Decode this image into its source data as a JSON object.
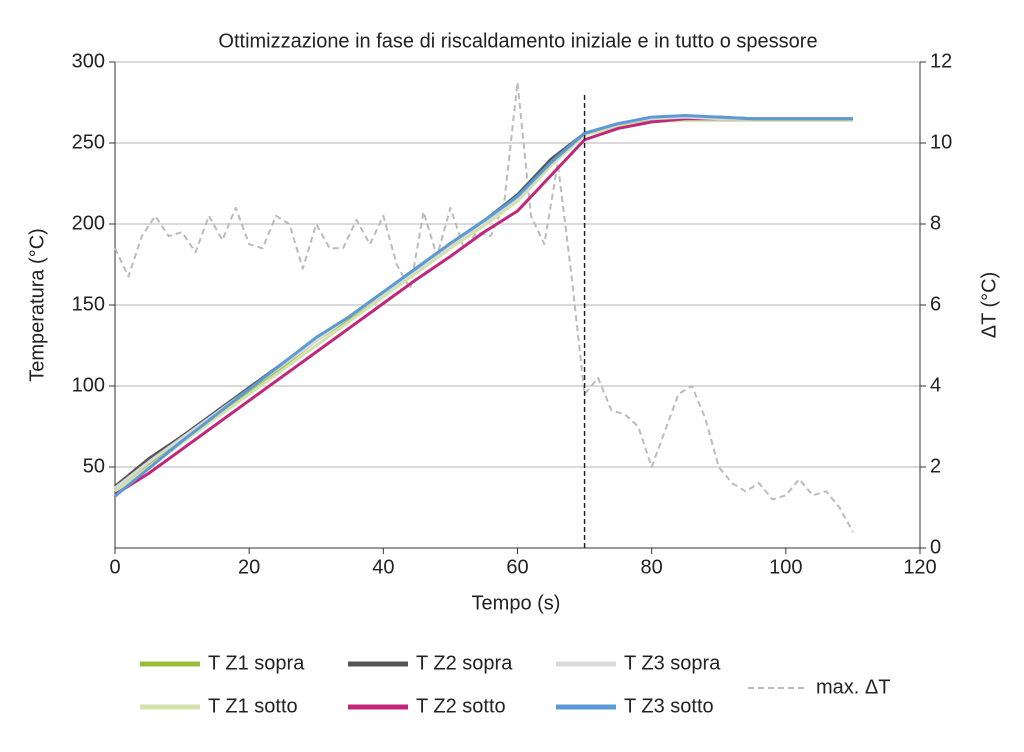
{
  "chart_data": {
    "type": "line",
    "title": "Ottimizzazione in fase di riscaldamento iniziale e in tutto o spessore",
    "xlabel": "Tempo (s)",
    "ylabel": "Temperatura (°C)",
    "y2label": "ΔT (°C)",
    "xlim": [
      0,
      120
    ],
    "xticks": [
      0,
      20,
      40,
      60,
      80,
      100,
      120
    ],
    "ylim": [
      0,
      300
    ],
    "yticks": [
      50,
      100,
      150,
      200,
      250,
      300
    ],
    "y2lim": [
      0,
      12
    ],
    "y2ticks": [
      0,
      2,
      4,
      6,
      8,
      10,
      12
    ],
    "grid": true,
    "vline": 70,
    "x": [
      0,
      5,
      10,
      15,
      20,
      25,
      30,
      35,
      40,
      45,
      50,
      55,
      60,
      65,
      70,
      75,
      80,
      85,
      90,
      95,
      100,
      105,
      110
    ],
    "series": [
      {
        "name": "T Z1 sopra",
        "color": "#9bbb3c",
        "values": [
          36,
          52,
          67,
          82,
          97,
          112,
          128,
          142,
          157,
          172,
          187,
          201,
          216,
          238,
          256,
          261,
          264,
          265,
          265,
          265,
          265,
          265,
          265
        ]
      },
      {
        "name": "T Z1 sotto",
        "color": "#d3e2ab",
        "values": [
          35,
          50,
          65,
          80,
          95,
          110,
          125,
          140,
          155,
          170,
          185,
          199,
          214,
          236,
          255,
          260,
          263,
          264,
          264,
          264,
          264,
          264,
          264
        ]
      },
      {
        "name": "T Z2 sopra",
        "color": "#555555",
        "values": [
          38,
          55,
          69,
          84,
          99,
          114,
          129,
          143,
          158,
          173,
          188,
          202,
          218,
          240,
          256,
          262,
          265,
          266,
          266,
          265,
          265,
          265,
          265
        ]
      },
      {
        "name": "T Z2 sotto",
        "color": "#c2267a",
        "values": [
          33,
          46,
          61,
          76,
          91,
          106,
          121,
          136,
          151,
          166,
          180,
          195,
          208,
          230,
          252,
          259,
          263,
          265,
          265,
          265,
          265,
          265,
          265
        ]
      },
      {
        "name": "T Z3 sopra",
        "color": "#d9d9d9",
        "values": [
          37,
          53,
          68,
          83,
          98,
          113,
          128,
          143,
          157,
          172,
          187,
          201,
          216,
          238,
          256,
          262,
          265,
          266,
          265,
          265,
          265,
          265,
          265
        ]
      },
      {
        "name": "T Z3 sotto",
        "color": "#5b9bd5",
        "values": [
          32,
          49,
          66,
          82,
          98,
          114,
          130,
          143,
          158,
          173,
          188,
          202,
          217,
          238,
          256,
          262,
          266,
          267,
          266,
          265,
          265,
          265,
          265
        ]
      },
      {
        "name": "max. ΔT",
        "color": "#bbbbbb",
        "axis": "y2",
        "dashed": true,
        "x": [
          0,
          2,
          4,
          6,
          8,
          10,
          12,
          14,
          16,
          18,
          20,
          22,
          24,
          26,
          28,
          30,
          32,
          34,
          36,
          38,
          40,
          42,
          44,
          46,
          48,
          50,
          52,
          54,
          56,
          58,
          60,
          62,
          64,
          66,
          68,
          70,
          72,
          74,
          76,
          78,
          80,
          82,
          84,
          86,
          88,
          90,
          92,
          94,
          96,
          98,
          100,
          102,
          104,
          106,
          108,
          110
        ],
        "values": [
          7.4,
          6.7,
          7.7,
          8.2,
          7.7,
          7.8,
          7.3,
          8.2,
          7.6,
          8.4,
          7.5,
          7.4,
          8.2,
          8.0,
          6.9,
          8.0,
          7.4,
          7.4,
          8.1,
          7.5,
          8.2,
          7.0,
          6.4,
          8.3,
          7.2,
          8.4,
          7.4,
          7.8,
          7.7,
          8.5,
          11.5,
          8.2,
          7.5,
          9.5,
          6.8,
          3.8,
          4.2,
          3.4,
          3.3,
          3.0,
          2.0,
          2.9,
          3.8,
          4.0,
          3.2,
          2.0,
          1.6,
          1.4,
          1.6,
          1.2,
          1.3,
          1.7,
          1.3,
          1.4,
          1.0,
          0.4
        ]
      }
    ]
  }
}
